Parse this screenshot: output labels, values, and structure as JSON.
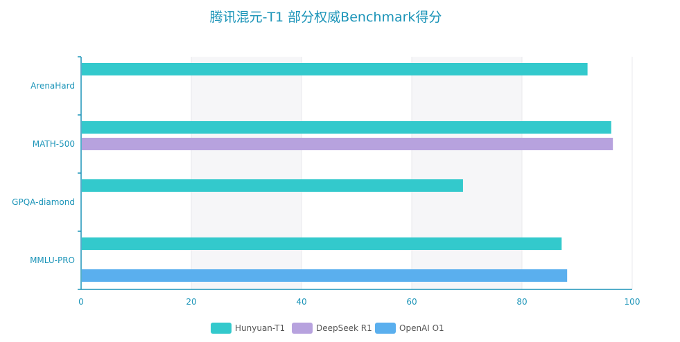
{
  "chart_data": {
    "type": "bar",
    "orientation": "horizontal",
    "title": "腾讯混元-T1 部分权威Benchmark得分",
    "categories": [
      "ArenaHard",
      "MATH-500",
      "GPQA-diamond",
      "MMLU-PRO"
    ],
    "series": [
      {
        "name": "Hunyuan-T1",
        "color": "#33c9cc",
        "values": [
          91.9,
          96.2,
          69.3,
          87.2
        ]
      },
      {
        "name": "DeepSeek R1",
        "color": "#b7a2de",
        "values": [
          null,
          96.5,
          null,
          null
        ]
      },
      {
        "name": "OpenAI O1",
        "color": "#5aafee",
        "values": [
          null,
          null,
          null,
          88.2
        ]
      }
    ],
    "xlim": [
      0,
      100
    ],
    "xticks": [
      0,
      20,
      40,
      60,
      80,
      100
    ],
    "grid": true,
    "legend": "bottom-center",
    "colors": {
      "axis": "#1b94b8",
      "title": "#1b94b8",
      "band": "#f6f6f8",
      "gridline": "#e8e8ec"
    }
  }
}
